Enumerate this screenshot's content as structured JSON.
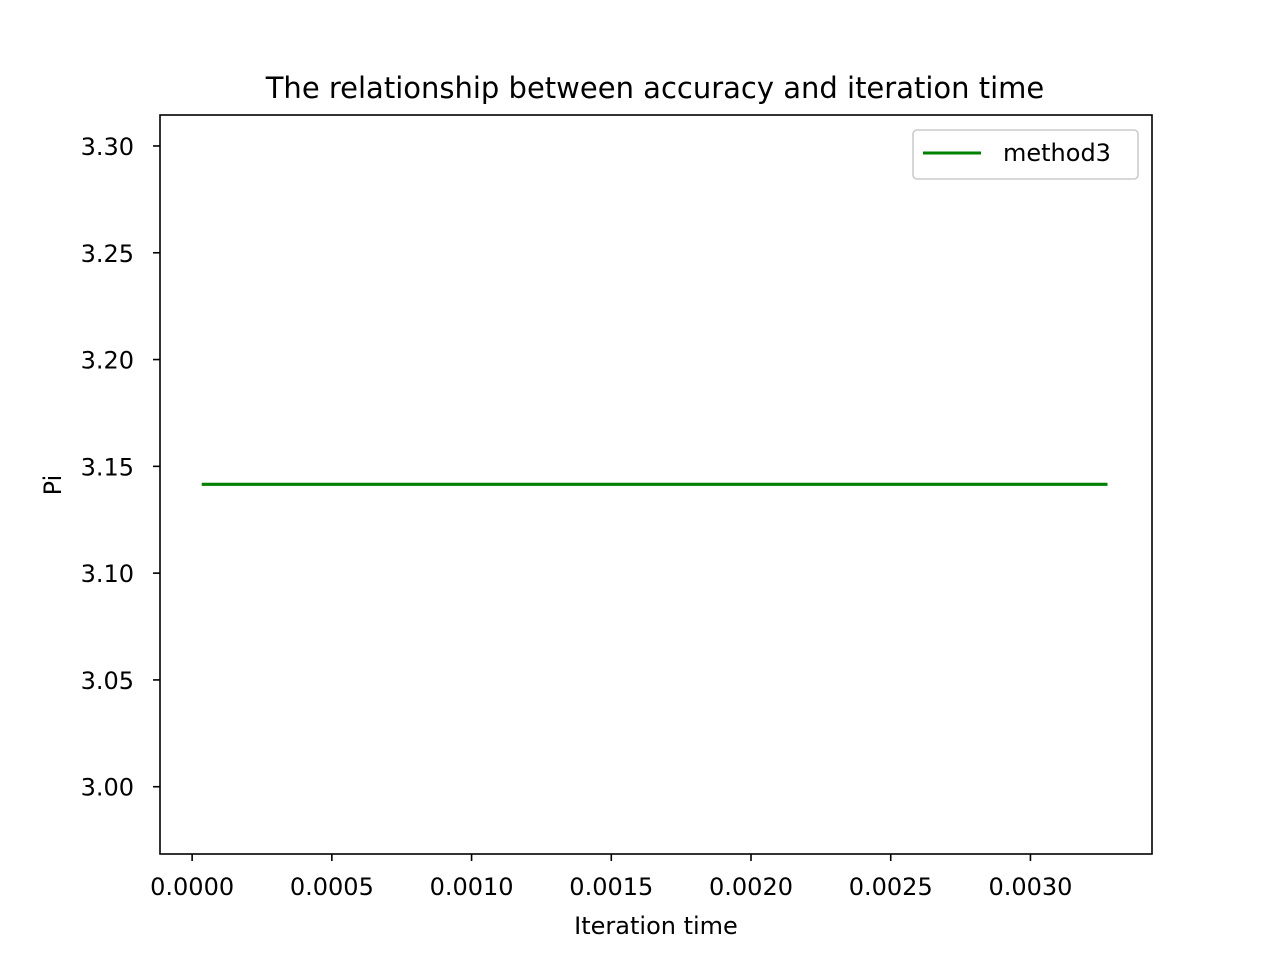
{
  "chart_data": {
    "type": "line",
    "title": "The relationship between accuracy and iteration time",
    "xlabel": "Iteration time",
    "ylabel": "Pi",
    "xlim": [
      -0.000115,
      0.003435
    ],
    "ylim": [
      2.9685,
      3.3145
    ],
    "x_ticks": [
      0.0,
      0.0005,
      0.001,
      0.0015,
      0.002,
      0.0025,
      0.003
    ],
    "x_tick_labels": [
      "0.0000",
      "0.0005",
      "0.0010",
      "0.0015",
      "0.0020",
      "0.0025",
      "0.0030"
    ],
    "y_ticks": [
      3.0,
      3.05,
      3.1,
      3.15,
      3.2,
      3.25,
      3.3
    ],
    "y_tick_labels": [
      "3.00",
      "3.05",
      "3.10",
      "3.15",
      "3.20",
      "3.25",
      "3.30"
    ],
    "grid": false,
    "legend_position": "top-right",
    "series": [
      {
        "name": "method3",
        "color": "#008000",
        "x": [
          4e-05,
          0.00327
        ],
        "y": [
          3.1416,
          3.1416
        ]
      }
    ]
  }
}
